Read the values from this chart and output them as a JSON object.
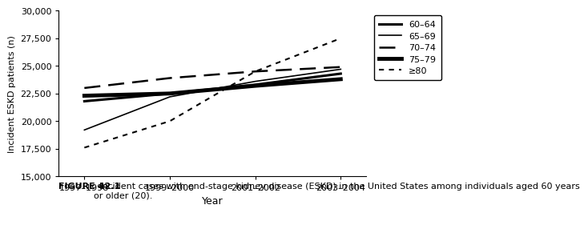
{
  "x_labels": [
    "1997–1998",
    "1999–2000",
    "2001–2002",
    "2003–2004"
  ],
  "x_positions": [
    0,
    1,
    2,
    3
  ],
  "series": [
    {
      "label": "60–64",
      "values": [
        21800,
        22500,
        23300,
        24300
      ],
      "linestyle": "solid",
      "linewidth": 2.2,
      "color": "#000000",
      "dashes": null
    },
    {
      "label": "65–69",
      "values": [
        19200,
        22200,
        23600,
        24700
      ],
      "linestyle": "solid",
      "linewidth": 1.2,
      "color": "#000000",
      "dashes": null
    },
    {
      "label": "70–74",
      "values": [
        23000,
        23900,
        24500,
        24900
      ],
      "linestyle": "dashed",
      "linewidth": 1.8,
      "color": "#000000",
      "dashes": [
        8,
        4
      ]
    },
    {
      "label": "75–79",
      "values": [
        22300,
        22500,
        23200,
        23800
      ],
      "linestyle": "solid",
      "linewidth": 3.5,
      "color": "#000000",
      "dashes": null
    },
    {
      "label": "≥80",
      "values": [
        17600,
        20000,
        24500,
        27500
      ],
      "linestyle": "dashed",
      "linewidth": 1.5,
      "color": "#000000",
      "dashes": [
        3,
        3
      ]
    }
  ],
  "ylabel": "Incident ESKD patients (n)",
  "xlabel": "Year",
  "ylim": [
    15000,
    30000
  ],
  "yticks": [
    15000,
    17500,
    20000,
    22500,
    25000,
    27500,
    30000
  ],
  "ytick_labels": [
    "15,000",
    "17,500",
    "20,000",
    "22,500",
    "25,000",
    "27,500",
    "30,000"
  ],
  "caption_bold": "FIGURE 42.1",
  "caption_normal": "  Incident cases with end-stage kidney disease (ESKD) in the United States among individuals aged 60 years\nor older (20).",
  "background_color": "#ffffff",
  "legend_fontsize": 8,
  "axis_fontsize": 8,
  "ylabel_fontsize": 8,
  "caption_fontsize": 8
}
